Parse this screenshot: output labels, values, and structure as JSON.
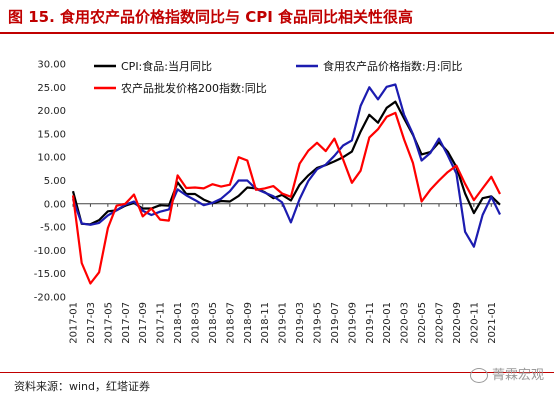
{
  "title": "图 15. 食用农产品价格指数同比与 CPI 食品同比相关性很高",
  "source": "资料来源：wind，红塔证券",
  "watermark": "菁霖宏观",
  "colors": {
    "accent": "#c00000",
    "cpi": "#000000",
    "agri": "#1c1cb0",
    "wholesale": "#ff0000"
  },
  "chart_data": {
    "type": "line",
    "title": "",
    "xlabel": "",
    "ylabel": "",
    "ylim": [
      -20,
      30
    ],
    "yticks": [
      -20,
      -15,
      -10,
      -5,
      0,
      5,
      10,
      15,
      20,
      25,
      30
    ],
    "ytick_labels": [
      "-20.00",
      "-15.00",
      "-10.00",
      "-5.00",
      "0.00",
      "5.00",
      "10.00",
      "15.00",
      "20.00",
      "25.00",
      "30.00"
    ],
    "x_tick_labels": [
      "2017-01",
      "2017-03",
      "2017-05",
      "2017-07",
      "2017-09",
      "2017-11",
      "2018-01",
      "2018-03",
      "2018-05",
      "2018-07",
      "2018-09",
      "2018-11",
      "2019-01",
      "2019-03",
      "2019-05",
      "2019-07",
      "2019-09",
      "2019-11",
      "2020-01",
      "2020-03",
      "2020-05",
      "2020-07",
      "2020-09",
      "2020-11",
      "2021-01"
    ],
    "legend_position": "top",
    "grid": false,
    "series": [
      {
        "name": "CPI:食品:当月同比",
        "color": "#000000",
        "start": "2017-01",
        "values": [
          2.7,
          -4.3,
          -4.4,
          -3.5,
          -1.6,
          -1.4,
          -0.4,
          0.2,
          -1.0,
          -1.0,
          -0.3,
          -0.4,
          4.6,
          2.1,
          2.1,
          0.9,
          0.1,
          0.6,
          0.5,
          1.7,
          3.5,
          3.3,
          2.5,
          1.2,
          1.9,
          0.7,
          4.1,
          6.1,
          7.7,
          8.3,
          9.1,
          10.0,
          11.2,
          15.5,
          19.1,
          17.4,
          20.6,
          21.9,
          18.3,
          14.8,
          10.6,
          11.1,
          13.2,
          11.2,
          7.9,
          2.2,
          -2.0,
          1.2,
          1.6,
          -0.2
        ]
      },
      {
        "name": "食用农产品价格指数:月:同比",
        "color": "#1c1cb0",
        "start": "2017-01",
        "values": [
          1.0,
          -4.2,
          -4.5,
          -4.1,
          -2.5,
          -1.4,
          -0.2,
          0.5,
          -1.5,
          -2.4,
          -1.7,
          -1.2,
          3.1,
          1.8,
          0.8,
          -0.3,
          0.2,
          1.1,
          2.7,
          5.0,
          5.0,
          3.2,
          2.4,
          1.6,
          0.3,
          -4.0,
          1.0,
          4.9,
          7.4,
          8.4,
          10.3,
          12.5,
          13.6,
          21.0,
          25.0,
          22.4,
          25.1,
          25.6,
          19.1,
          15.0,
          9.3,
          10.9,
          14.0,
          10.4,
          6.5,
          -6.0,
          -9.2,
          -2.4,
          1.5,
          -2.3
        ]
      },
      {
        "name": "农产品批发价格200指数:同比",
        "color": "#ff0000",
        "start": "2017-01",
        "values": [
          1.8,
          -12.7,
          -17.1,
          -14.7,
          -5.2,
          -0.4,
          0.0,
          2.0,
          -2.7,
          -1.0,
          -3.4,
          -3.6,
          6.1,
          3.4,
          3.5,
          3.3,
          4.2,
          3.7,
          4.1,
          10.0,
          9.3,
          3.0,
          3.3,
          3.8,
          2.2,
          1.5,
          8.6,
          11.4,
          13.1,
          11.3,
          14.0,
          9.5,
          4.5,
          7.1,
          14.2,
          16.0,
          18.7,
          19.5,
          13.8,
          8.8,
          0.5,
          3.0,
          5.0,
          6.8,
          8.2,
          4.3,
          0.8,
          3.3,
          5.8,
          2.1
        ]
      }
    ]
  }
}
